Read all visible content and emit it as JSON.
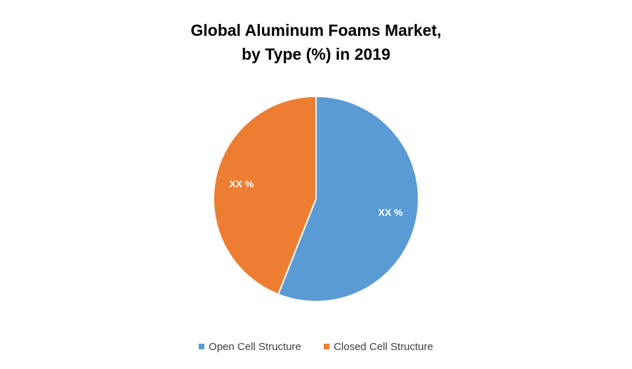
{
  "chart_data": {
    "type": "pie",
    "title_line1": "Global Aluminum Foams Market,",
    "title_line2": "by Type (%) in 2019",
    "series": [
      {
        "name": "Open Cell Structure",
        "value": 56,
        "label": "XX %",
        "color": "#5B9BD5"
      },
      {
        "name": "Closed Cell Structure",
        "value": 44,
        "label": "XX %",
        "color": "#ED7D31"
      }
    ],
    "start_angle_deg": 0,
    "direction": "clockwise",
    "legend_position": "bottom"
  }
}
